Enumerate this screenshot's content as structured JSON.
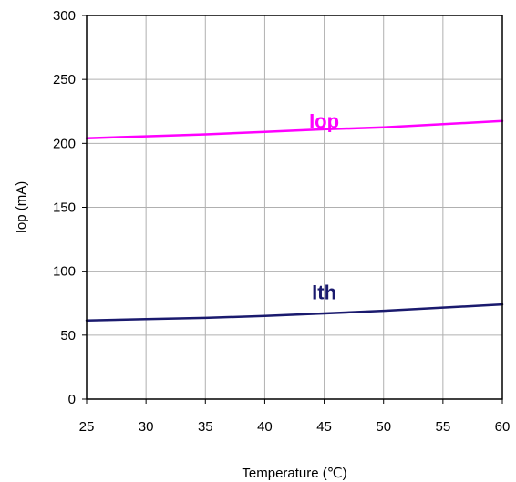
{
  "chart_data": {
    "type": "line",
    "xlabel": "Temperature (℃)",
    "ylabel": "Iop (mA)",
    "xlim": [
      25,
      60
    ],
    "ylim": [
      0,
      300
    ],
    "x_ticks": [
      25,
      30,
      35,
      40,
      45,
      50,
      55,
      60
    ],
    "y_ticks": [
      0,
      50,
      100,
      150,
      200,
      250,
      300
    ],
    "grid": true,
    "legend": "none",
    "series": [
      {
        "name": "Iop",
        "color": "#ff00ff",
        "label_at": [
          45,
          212
        ],
        "x": [
          25,
          30,
          35,
          40,
          45,
          50,
          55,
          60
        ],
        "y": [
          204,
          205.5,
          207,
          209,
          211,
          212.5,
          215,
          217.5
        ]
      },
      {
        "name": "Ith",
        "color": "#1a1a6e",
        "label_at": [
          45,
          78
        ],
        "x": [
          25,
          30,
          35,
          40,
          45,
          50,
          55,
          60
        ],
        "y": [
          61.5,
          62.5,
          63.5,
          65,
          67,
          69,
          71.5,
          74
        ]
      }
    ]
  }
}
